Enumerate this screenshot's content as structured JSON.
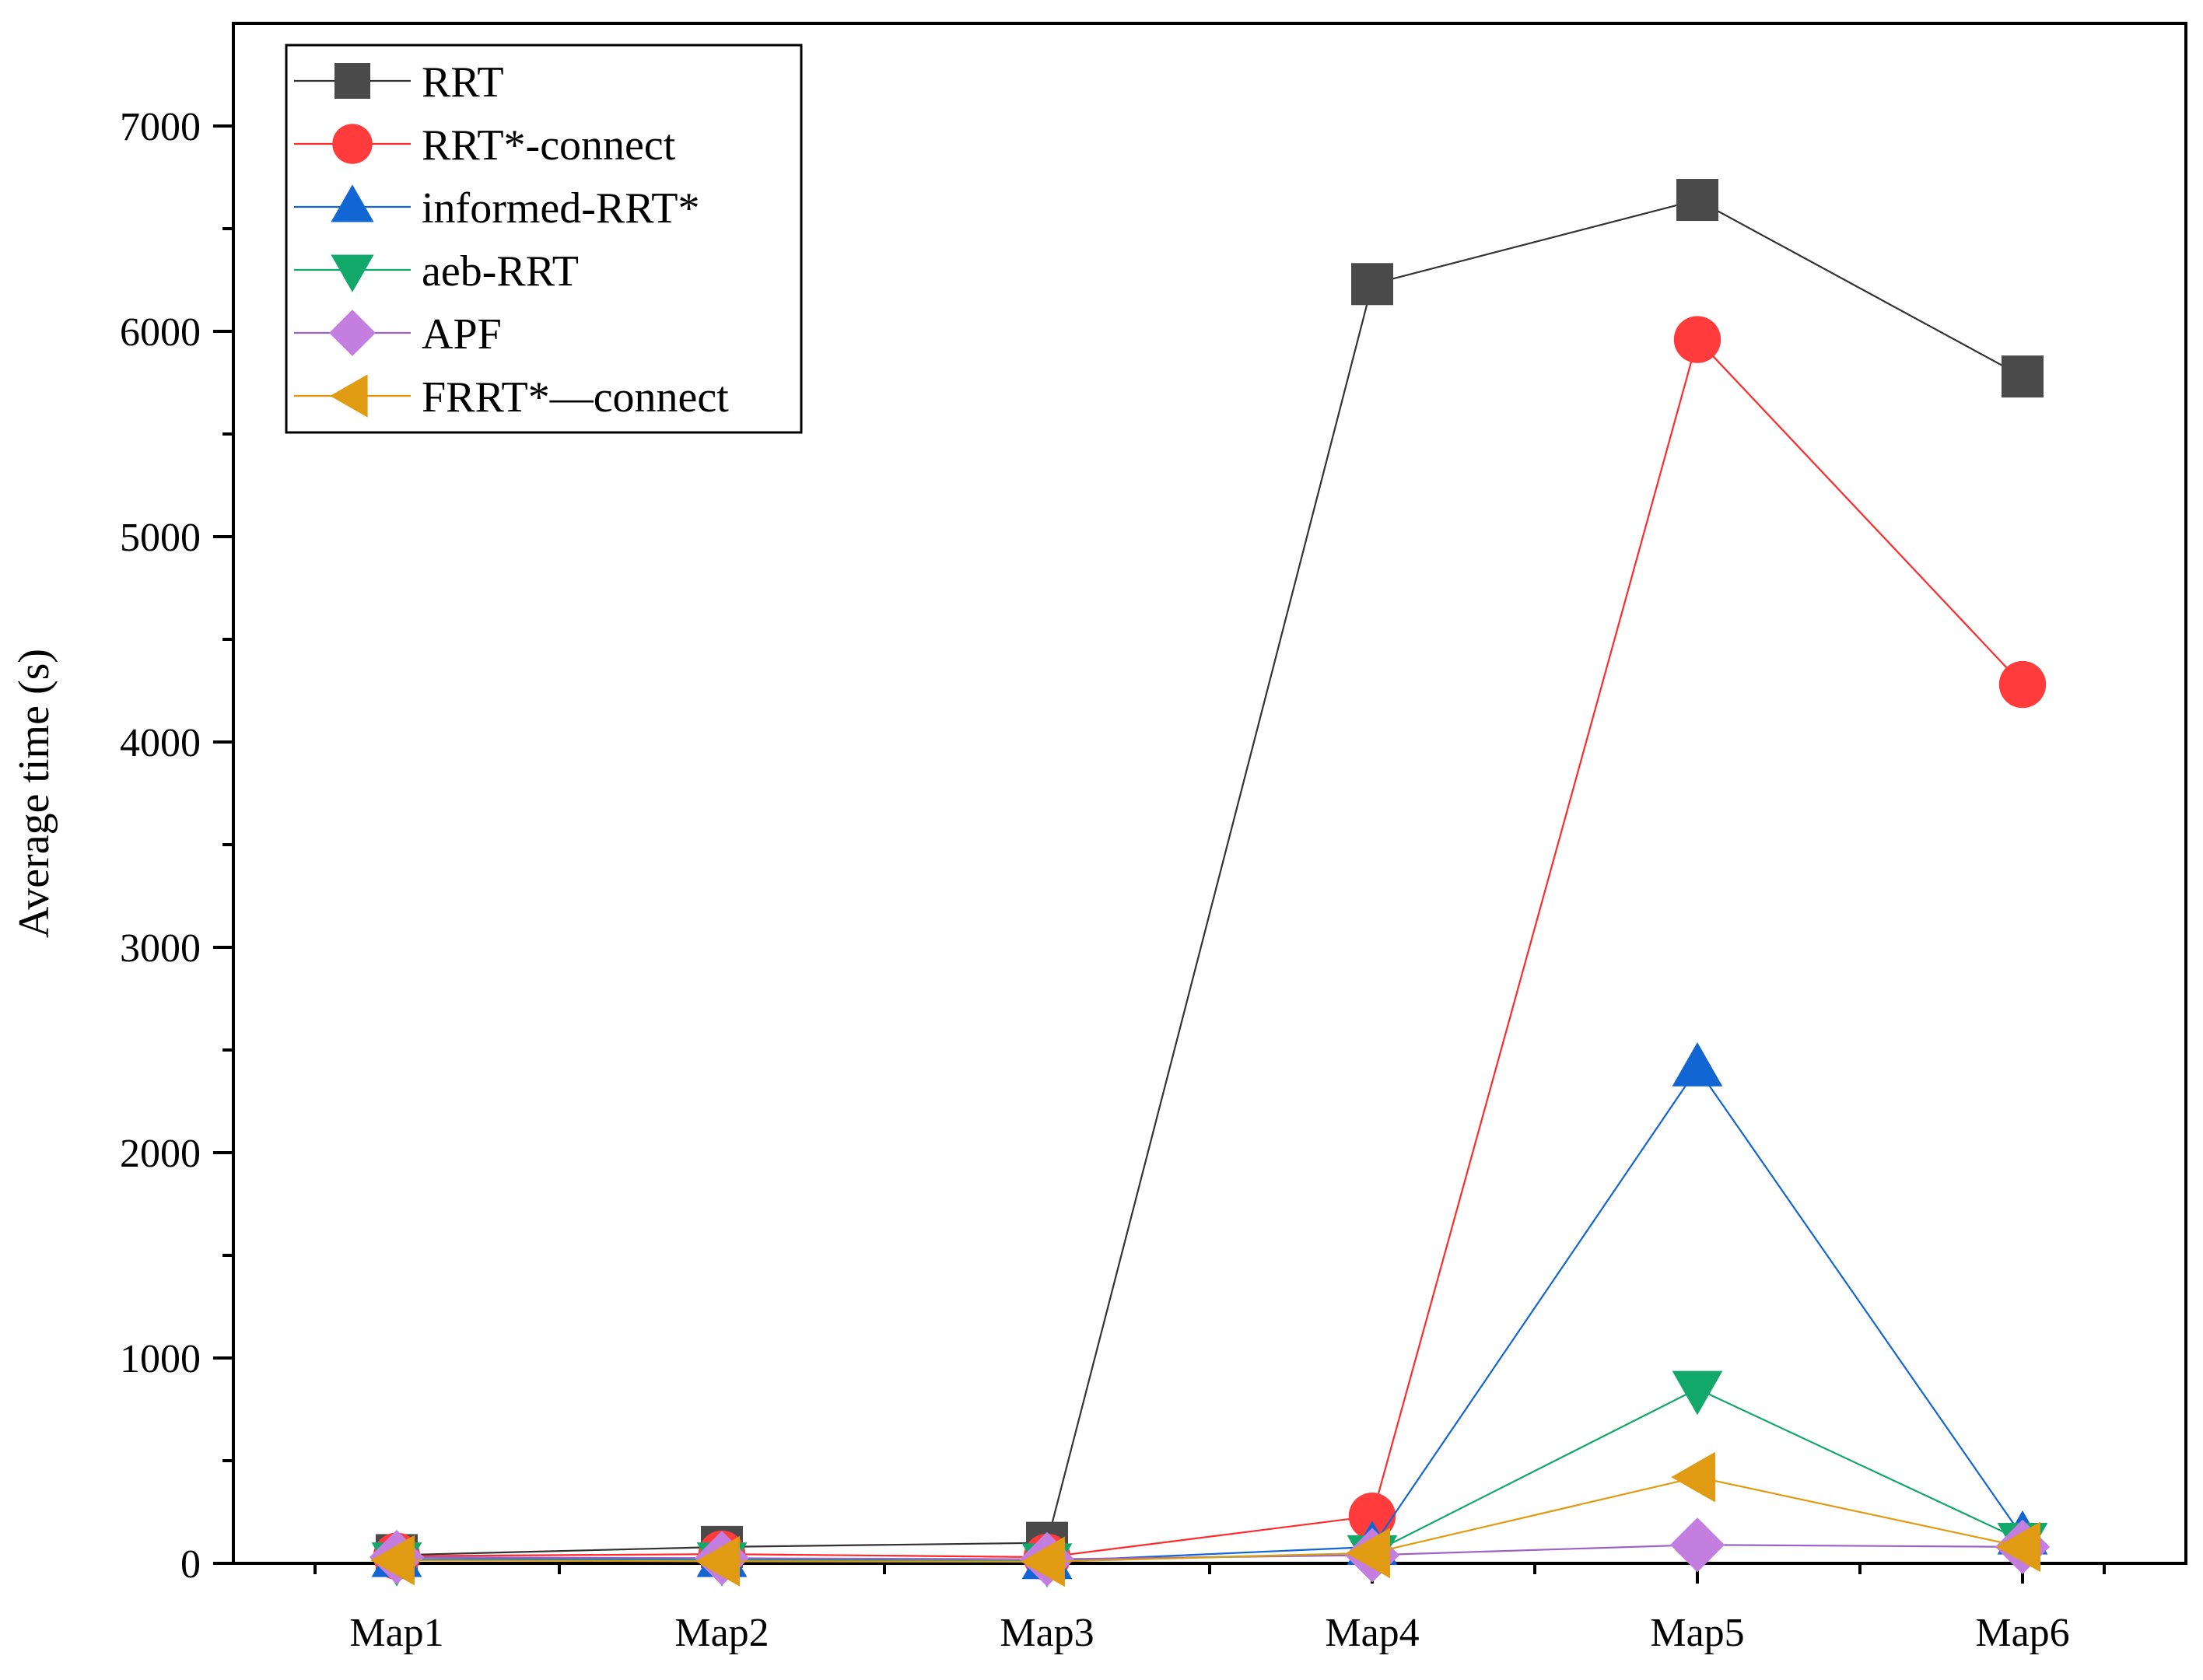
{
  "chart_data": {
    "type": "line",
    "title": "",
    "xlabel": "",
    "ylabel": "Average time (s)",
    "ylim": [
      0,
      7500
    ],
    "yticks": [
      0,
      1000,
      2000,
      3000,
      4000,
      5000,
      6000,
      7000
    ],
    "categories": [
      "Map1",
      "Map2",
      "Map3",
      "Map4",
      "Map5",
      "Map6"
    ],
    "legend_position": "top-left",
    "grid": false,
    "series": [
      {
        "name": "RRT",
        "marker": "square",
        "color": "#4a4a4a",
        "line_color": "#333333",
        "values": [
          40,
          80,
          100,
          6230,
          6640,
          5780
        ]
      },
      {
        "name": "RRT*-connect",
        "marker": "circle",
        "color": "#ff3b3b",
        "line_color": "#ff2a2a",
        "values": [
          35,
          45,
          30,
          230,
          5960,
          4280
        ]
      },
      {
        "name": "informed-RRT*",
        "marker": "triangle-up",
        "color": "#1266d4",
        "line_color": "#1266d4",
        "values": [
          20,
          20,
          10,
          80,
          2410,
          130
        ]
      },
      {
        "name": "aeb-RRT",
        "marker": "triangle-down",
        "color": "#12a86a",
        "line_color": "#12a86a",
        "values": [
          15,
          15,
          10,
          50,
          850,
          110
        ]
      },
      {
        "name": "APF",
        "marker": "diamond",
        "color": "#c47ee0",
        "line_color": "#9a63c9",
        "values": [
          30,
          25,
          20,
          40,
          90,
          80
        ]
      },
      {
        "name": "FRRT*—connect",
        "marker": "triangle-left",
        "color": "#e09b12",
        "line_color": "#e09b12",
        "values": [
          15,
          10,
          8,
          50,
          420,
          80
        ]
      }
    ]
  }
}
